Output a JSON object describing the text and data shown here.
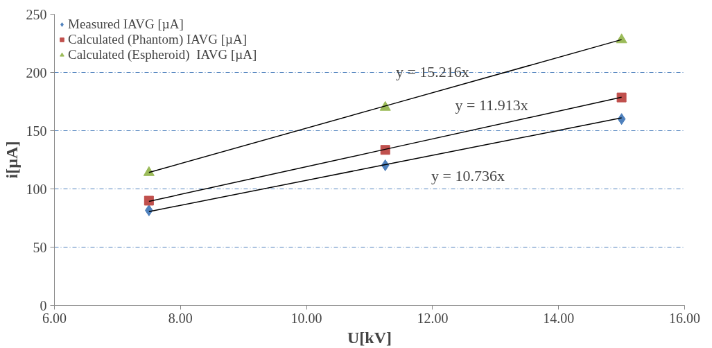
{
  "chart_data": {
    "type": "scatter",
    "xlabel": "U[kV]",
    "ylabel": "i[µA]",
    "xlim": [
      6,
      16
    ],
    "xticks": [
      {
        "value": 6,
        "label": "6.00"
      },
      {
        "value": 8,
        "label": "8.00"
      },
      {
        "value": 10,
        "label": "10.00"
      },
      {
        "value": 12,
        "label": "12.00"
      },
      {
        "value": 14,
        "label": "14.00"
      },
      {
        "value": 16,
        "label": "16.00"
      }
    ],
    "ylim": [
      0,
      250
    ],
    "yticks": [
      0,
      50,
      100,
      150,
      200,
      250
    ],
    "grid": "y",
    "legend": "top left",
    "x": [
      7.5,
      11.25,
      15
    ],
    "series": [
      {
        "name": "Measured IAVG [µA]",
        "color": "#4f81bd",
        "marker": "diamond",
        "values": [
          81.6,
          120.3,
          160
        ]
      },
      {
        "name": "Calculated (Phantom) IAVG [µA]",
        "color": "#c0504d",
        "marker": "square",
        "values": [
          89.9,
          133.5,
          178.5
        ]
      },
      {
        "name": "Calculated (Espheroid)  IAVG [µA]",
        "color": "#9bbb59",
        "marker": "triangle",
        "values": [
          114,
          170,
          228
        ]
      },
      {
        "type": "line",
        "color": "#000000",
        "values": [
          80.5,
          120.8,
          161
        ]
      },
      {
        "type": "line",
        "color": "#000000",
        "values": [
          89.3,
          134,
          178.7
        ]
      },
      {
        "type": "line",
        "color": "#000000",
        "values": [
          114.1,
          171.2,
          228.2
        ]
      }
    ],
    "annotations": [
      "y = 10.736x",
      "y = 11.913x",
      "y = 15.216x"
    ]
  }
}
